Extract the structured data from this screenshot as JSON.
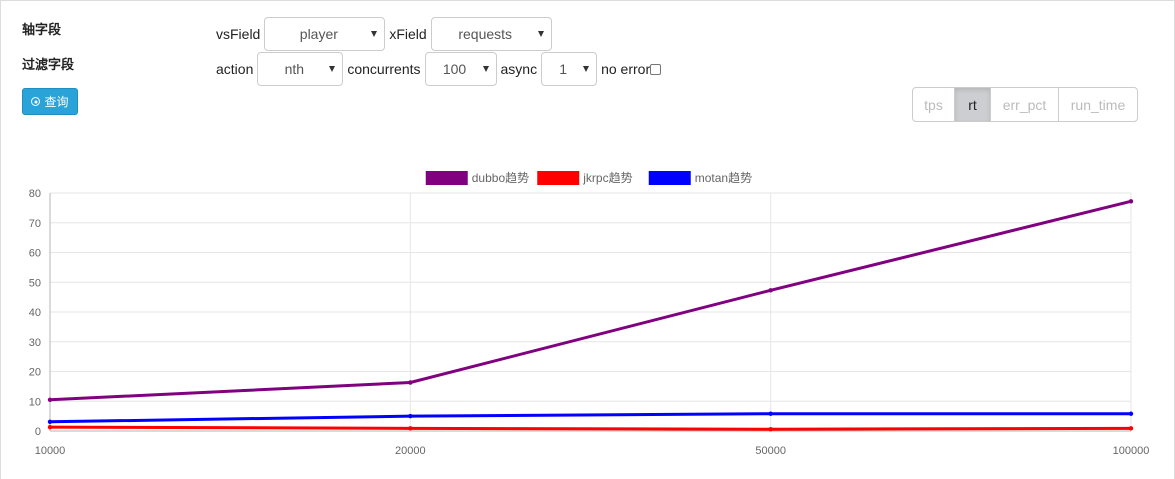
{
  "labels": {
    "axis_field": "轴字段",
    "filter_field": "过滤字段",
    "query_button": "查询"
  },
  "controls": {
    "vsfield_label": "vsField",
    "vsfield_value": "player",
    "xfield_label": "xField",
    "xfield_value": "requests",
    "action_label": "action",
    "action_value": "nth",
    "concurrents_label": "concurrents",
    "concurrents_value": "100",
    "async_label": "async",
    "async_value": "1",
    "no_error_label": "no error"
  },
  "metrics": {
    "options": [
      "tps",
      "rt",
      "err_pct",
      "run_time"
    ],
    "selected": "rt"
  },
  "chart_data": {
    "type": "line",
    "x": [
      10000,
      20000,
      50000,
      100000
    ],
    "x_tick_labels": [
      "10000",
      "20000",
      "50000",
      "100000"
    ],
    "ylim": [
      0,
      80
    ],
    "y_ticks": [
      0,
      10,
      20,
      30,
      40,
      50,
      60,
      70,
      80
    ],
    "grid": true,
    "legend_position": "top-center",
    "series": [
      {
        "name": "dubbo趋势",
        "color": "#800080",
        "values": [
          10.5,
          16.3,
          47.3,
          77.2
        ]
      },
      {
        "name": "jkrpc趋势",
        "color": "#ff0000",
        "values": [
          1.3,
          0.9,
          0.6,
          0.9
        ]
      },
      {
        "name": "motan趋势",
        "color": "#0000ff",
        "values": [
          3.1,
          5.0,
          5.8,
          5.8
        ]
      }
    ]
  }
}
